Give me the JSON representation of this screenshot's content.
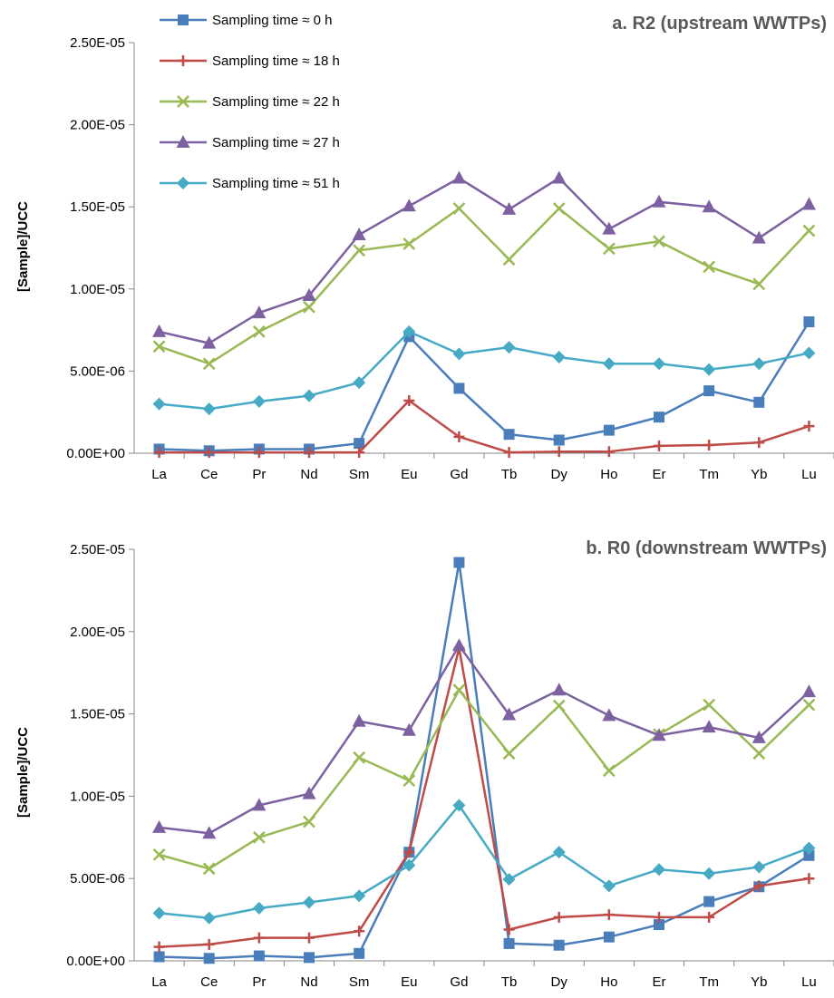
{
  "chart_data": [
    {
      "type": "line",
      "title": "a. R2 (upstream WWTPs)",
      "xlabel": "",
      "ylabel": "[Sample]/UCC",
      "categories": [
        "La",
        "Ce",
        "Pr",
        "Nd",
        "Sm",
        "Eu",
        "Gd",
        "Tb",
        "Dy",
        "Ho",
        "Er",
        "Tm",
        "Yb",
        "Lu"
      ],
      "y_ticks": [
        "0.00E+00",
        "5.00E-06",
        "1.00E-05",
        "1.50E-05",
        "2.00E-05",
        "2.50E-05"
      ],
      "ylim": [
        0,
        2.5e-05
      ],
      "grid": false,
      "legend_position": "top-left",
      "series": [
        {
          "name": "Sampling time ≈ 0 h",
          "color": "#4a7ebb",
          "marker": "square",
          "values": [
            2.5e-07,
            1.5e-07,
            2.5e-07,
            2.5e-07,
            6e-07,
            7.1e-06,
            3.95e-06,
            1.15e-06,
            8e-07,
            1.4e-06,
            2.2e-06,
            3.8e-06,
            3.1e-06,
            8e-06
          ]
        },
        {
          "name": "Sampling time ≈ 18 h",
          "color": "#be4b48",
          "marker": "plus",
          "values": [
            5e-08,
            5e-08,
            5e-08,
            5e-08,
            5e-08,
            3.2e-06,
            1e-06,
            5e-08,
            1e-07,
            1e-07,
            4.5e-07,
            5e-07,
            6.5e-07,
            1.65e-06
          ]
        },
        {
          "name": "Sampling time ≈ 22 h",
          "color": "#98b954",
          "marker": "x",
          "values": [
            6.5e-06,
            5.45e-06,
            7.4e-06,
            8.9e-06,
            1.235e-05,
            1.275e-05,
            1.49e-05,
            1.18e-05,
            1.49e-05,
            1.245e-05,
            1.29e-05,
            1.135e-05,
            1.03e-05,
            1.355e-05
          ]
        },
        {
          "name": "Sampling time ≈ 27 h",
          "color": "#7d60a0",
          "marker": "triangle",
          "values": [
            7.4e-06,
            6.7e-06,
            8.55e-06,
            9.6e-06,
            1.33e-05,
            1.505e-05,
            1.675e-05,
            1.485e-05,
            1.675e-05,
            1.365e-05,
            1.53e-05,
            1.5e-05,
            1.31e-05,
            1.515e-05
          ]
        },
        {
          "name": "Sampling time ≈ 51 h",
          "color": "#46aac5",
          "marker": "diamond",
          "values": [
            3e-06,
            2.7e-06,
            3.15e-06,
            3.5e-06,
            4.3e-06,
            7.4e-06,
            6.05e-06,
            6.45e-06,
            5.85e-06,
            5.45e-06,
            5.45e-06,
            5.1e-06,
            5.45e-06,
            6.1e-06
          ]
        }
      ]
    },
    {
      "type": "line",
      "title": "b. R0 (downstream WWTPs)",
      "xlabel": "",
      "ylabel": "[Sample]/UCC",
      "categories": [
        "La",
        "Ce",
        "Pr",
        "Nd",
        "Sm",
        "Eu",
        "Gd",
        "Tb",
        "Dy",
        "Ho",
        "Er",
        "Tm",
        "Yb",
        "Lu"
      ],
      "y_ticks": [
        "0.00E+00",
        "5.00E-06",
        "1.00E-05",
        "1.50E-05",
        "2.00E-05",
        "2.50E-05"
      ],
      "ylim": [
        0,
        2.5e-05
      ],
      "grid": false,
      "legend_position": "none",
      "series": [
        {
          "name": "Sampling time ≈ 0 h",
          "color": "#4a7ebb",
          "marker": "square",
          "values": [
            2.5e-07,
            1.5e-07,
            3e-07,
            2e-07,
            4.5e-07,
            6.6e-06,
            2.42e-05,
            1.05e-06,
            9.5e-07,
            1.45e-06,
            2.2e-06,
            3.6e-06,
            4.5e-06,
            6.4e-06
          ]
        },
        {
          "name": "Sampling time ≈ 18 h",
          "color": "#be4b48",
          "marker": "plus",
          "values": [
            8.5e-07,
            1e-06,
            1.4e-06,
            1.4e-06,
            1.8e-06,
            6.6e-06,
            1.9e-05,
            1.9e-06,
            2.65e-06,
            2.8e-06,
            2.65e-06,
            2.65e-06,
            4.55e-06,
            5e-06
          ]
        },
        {
          "name": "Sampling time ≈ 22 h",
          "color": "#98b954",
          "marker": "x",
          "values": [
            6.45e-06,
            5.6e-06,
            7.5e-06,
            8.45e-06,
            1.235e-05,
            1.095e-05,
            1.645e-05,
            1.26e-05,
            1.55e-05,
            1.155e-05,
            1.375e-05,
            1.555e-05,
            1.26e-05,
            1.555e-05
          ]
        },
        {
          "name": "Sampling time ≈ 27 h",
          "color": "#7d60a0",
          "marker": "triangle",
          "values": [
            8.1e-06,
            7.75e-06,
            9.45e-06,
            1.015e-05,
            1.455e-05,
            1.4e-05,
            1.915e-05,
            1.495e-05,
            1.645e-05,
            1.49e-05,
            1.37e-05,
            1.42e-05,
            1.355e-05,
            1.635e-05
          ]
        },
        {
          "name": "Sampling time ≈ 51 h",
          "color": "#46aac5",
          "marker": "diamond",
          "values": [
            2.9e-06,
            2.6e-06,
            3.2e-06,
            3.55e-06,
            3.95e-06,
            5.8e-06,
            9.45e-06,
            4.95e-06,
            6.6e-06,
            4.55e-06,
            5.55e-06,
            5.3e-06,
            5.7e-06,
            6.85e-06
          ]
        }
      ]
    }
  ]
}
